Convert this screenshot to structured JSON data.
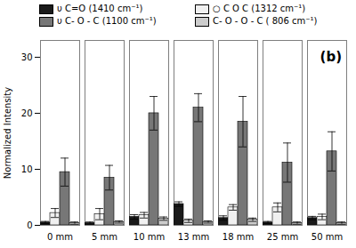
{
  "chart_data": {
    "type": "bar",
    "categories": [
      "0 mm",
      "5 mm",
      "10 mm",
      "13 mm",
      "18 mm",
      "25 mm",
      "50 mm"
    ],
    "series": [
      {
        "name": "υ C=O (1410 cm⁻¹)",
        "color": "#1a1a1a",
        "values": [
          0.5,
          0.4,
          1.5,
          3.8,
          1.3,
          0.5,
          1.3
        ],
        "errors": [
          0.2,
          0.2,
          0.4,
          0.4,
          0.4,
          0.2,
          0.3
        ]
      },
      {
        "name": "○ C O C (1312 cm⁻¹)",
        "color": "#f0f0f0",
        "values": [
          2.2,
          2.0,
          1.8,
          0.8,
          3.2,
          3.2,
          1.5
        ],
        "errors": [
          0.8,
          1.0,
          0.5,
          0.3,
          0.5,
          0.8,
          0.5
        ]
      },
      {
        "name": "υ C- O - C (1100 cm⁻¹)",
        "color": "#777777",
        "values": [
          9.5,
          8.5,
          20.0,
          21.0,
          18.5,
          11.2,
          13.2
        ],
        "errors": [
          2.5,
          2.2,
          3.0,
          2.5,
          4.5,
          3.5,
          3.5
        ]
      },
      {
        "name": "C- O - O - C ( 806 cm⁻¹)",
        "color": "#cccccc",
        "values": [
          0.4,
          0.6,
          1.2,
          0.6,
          1.0,
          0.4,
          0.4
        ],
        "errors": [
          0.2,
          0.2,
          0.3,
          0.2,
          0.3,
          0.2,
          0.2
        ]
      }
    ],
    "ylabel": "Normalized Intensity",
    "ylim": [
      0,
      33
    ],
    "yticks": [
      0,
      10,
      20,
      30
    ],
    "annotations": [
      "(b)"
    ],
    "grid": false
  }
}
